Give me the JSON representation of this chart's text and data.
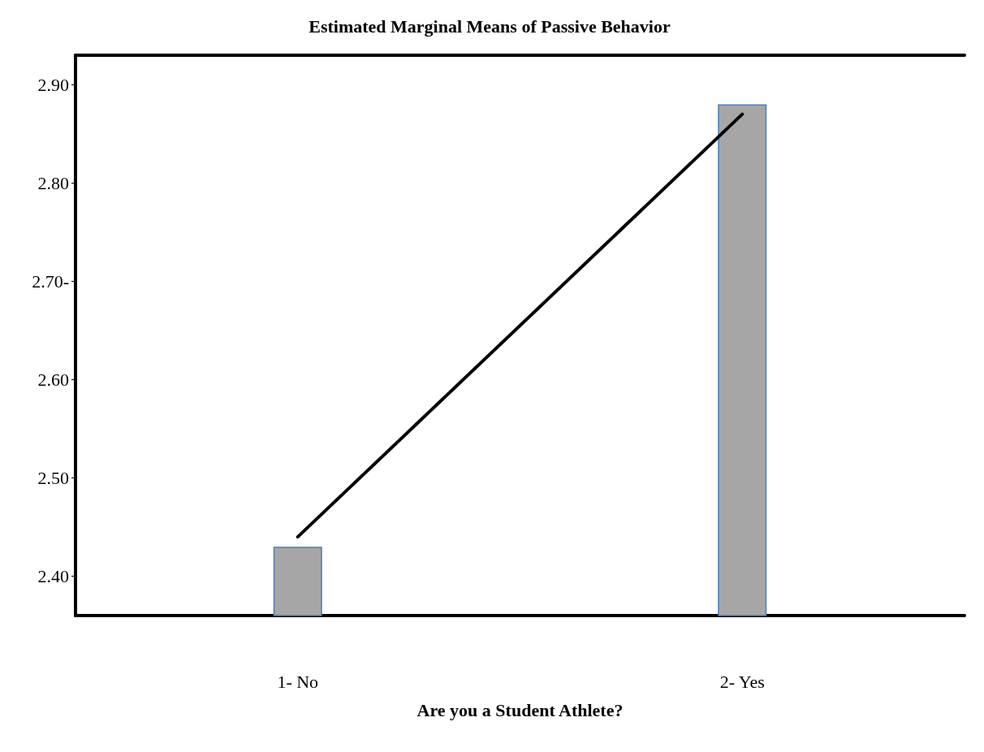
{
  "chart_data": {
    "type": "bar",
    "title": "Estimated Marginal Means of Passive Behavior",
    "xlabel": "Are you a Student Athlete?",
    "categories": [
      "1- No",
      "2- Yes"
    ],
    "series": [
      {
        "color": "#a6a6a6",
        "values": [
          2.43,
          2.88
        ]
      },
      {
        "type": "line",
        "color": "#000000",
        "values": [
          2.44,
          2.87
        ]
      }
    ],
    "ylim": [
      2.36,
      2.93
    ],
    "yticks": [
      {
        "value": 2.4,
        "label": "2.40"
      },
      {
        "value": 2.5,
        "label": "2.50"
      },
      {
        "value": 2.6,
        "label": "2.60"
      },
      {
        "value": 2.7,
        "label": "2.70-"
      },
      {
        "value": 2.8,
        "label": "2.80"
      },
      {
        "value": 2.9,
        "label": "2.90"
      }
    ],
    "grid": false,
    "marker": "none",
    "line_style": "solid"
  }
}
